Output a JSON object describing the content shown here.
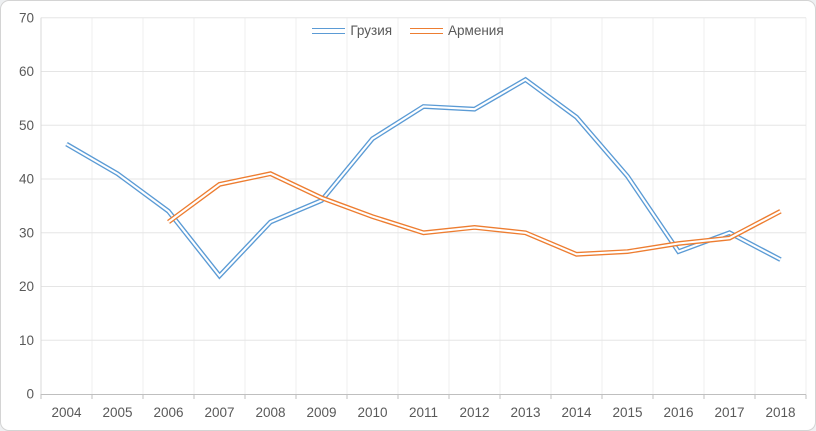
{
  "chart_data": {
    "type": "line",
    "title": "",
    "categories": [
      "2004",
      "2005",
      "2006",
      "2007",
      "2008",
      "2009",
      "2010",
      "2011",
      "2012",
      "2013",
      "2014",
      "2015",
      "2016",
      "2017",
      "2018"
    ],
    "series": [
      {
        "name": "Грузия",
        "color": "#5B9BD5",
        "values": [
          46.5,
          41,
          34,
          22,
          32,
          36,
          47.5,
          53.5,
          53,
          58.5,
          51.5,
          40.5,
          26.5,
          30,
          25
        ]
      },
      {
        "name": "Армения",
        "color": "#ED7D31",
        "values": [
          null,
          null,
          32,
          39,
          41,
          36.5,
          33,
          30,
          31,
          30,
          26,
          26.5,
          28,
          29,
          34
        ]
      }
    ],
    "ylim": [
      0,
      70
    ],
    "ytick_step": 10,
    "y_tick_labels": [
      "0",
      "10",
      "20",
      "30",
      "40",
      "50",
      "60",
      "70"
    ],
    "grid": true,
    "legend_position": "top-center",
    "line_style": "double-compound",
    "colors": {
      "axis_text": "#595959",
      "h_gridline": "#e5e5e5",
      "v_gridline": "#efefef",
      "x_axis_line": "#bfbfbf",
      "y_axis_line": "#d9d9d9",
      "background": "#ffffff"
    }
  }
}
